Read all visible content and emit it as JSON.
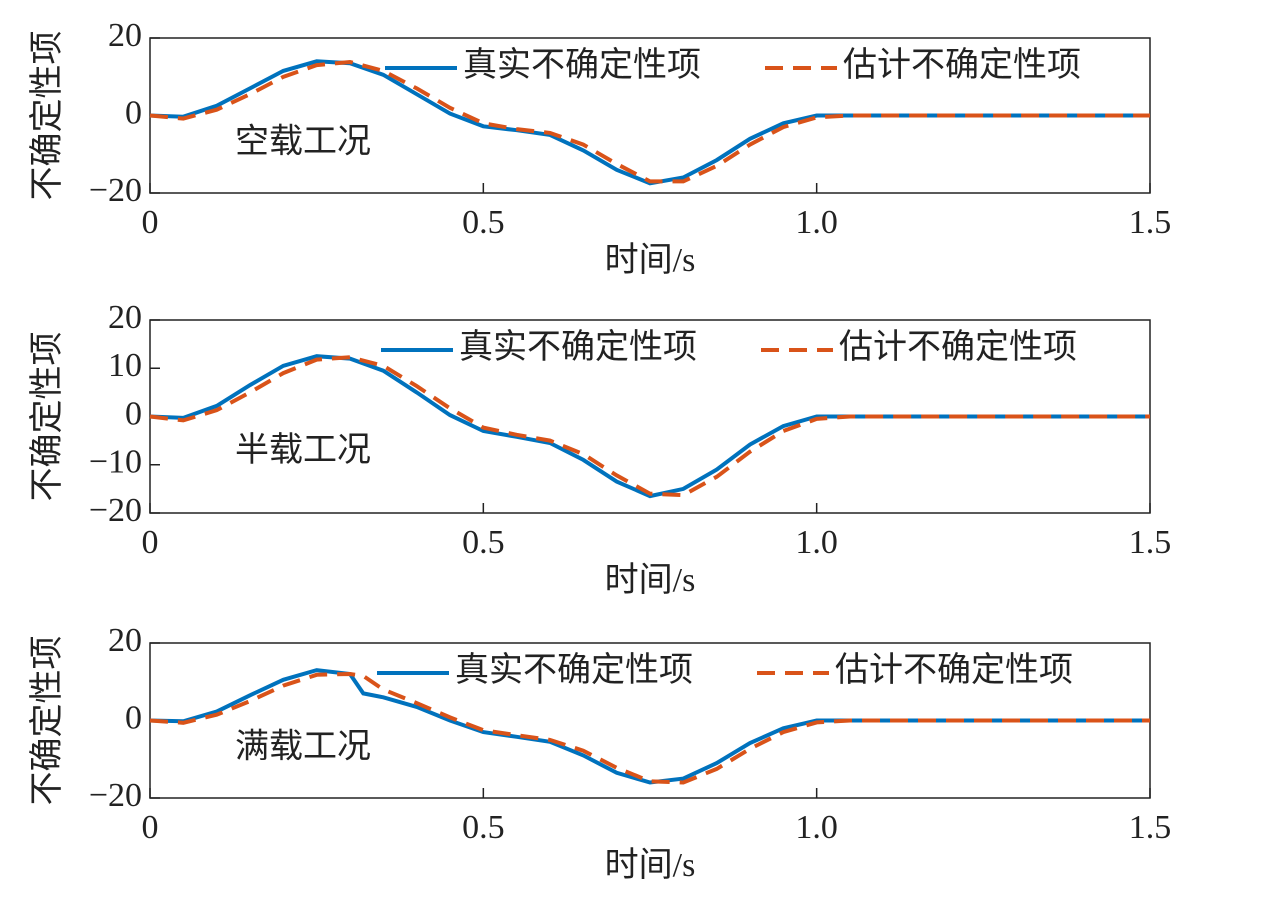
{
  "chart_data": [
    {
      "type": "line",
      "annotation": "空载工况",
      "xlabel": "时间/s",
      "ylabel": "不确定性项",
      "x": [
        0,
        0.05,
        0.1,
        0.15,
        0.2,
        0.25,
        0.3,
        0.35,
        0.4,
        0.45,
        0.5,
        0.55,
        0.6,
        0.65,
        0.7,
        0.75,
        0.8,
        0.85,
        0.9,
        0.95,
        1.0,
        1.05,
        1.1,
        1.15,
        1.2,
        1.25,
        1.3,
        1.35,
        1.4,
        1.45,
        1.5
      ],
      "series": [
        {
          "name": "真实不确定性项",
          "color": "#0072bd",
          "values": [
            0,
            -0.3,
            2.5,
            7,
            11.5,
            14,
            13.5,
            10.5,
            5.5,
            0.5,
            -2.8,
            -3.8,
            -5,
            -9,
            -14,
            -17.5,
            -16,
            -11.5,
            -6,
            -2,
            0,
            0,
            0,
            0,
            0,
            0,
            0,
            0,
            0,
            0,
            0
          ]
        },
        {
          "name": "估计不确定性项",
          "color": "#d95319",
          "values": [
            0,
            -0.8,
            1.5,
            5.5,
            10,
            13,
            13.8,
            11.5,
            7,
            2,
            -2,
            -3.5,
            -4.5,
            -7.5,
            -12.5,
            -17,
            -17,
            -13,
            -7.5,
            -3,
            -0.5,
            0,
            0,
            0,
            0,
            0,
            0,
            0,
            0,
            0,
            0
          ]
        }
      ],
      "xlim": [
        0,
        1.5
      ],
      "xticks": [
        0,
        0.5,
        {
          "value": 1.0,
          "label": "1.0"
        },
        1.5
      ],
      "ylim": [
        -20,
        20
      ],
      "yticks": [
        {
          "value": -20,
          "label": "−20"
        },
        0,
        20
      ]
    },
    {
      "type": "line",
      "annotation": "半载工况",
      "xlabel": "时间/s",
      "ylabel": "不确定性项",
      "x": [
        0,
        0.05,
        0.1,
        0.15,
        0.2,
        0.25,
        0.3,
        0.35,
        0.4,
        0.45,
        0.5,
        0.55,
        0.6,
        0.65,
        0.7,
        0.75,
        0.8,
        0.85,
        0.9,
        0.95,
        1.0,
        1.05,
        1.1,
        1.15,
        1.2,
        1.25,
        1.3,
        1.35,
        1.4,
        1.45,
        1.5
      ],
      "series": [
        {
          "name": "真实不确定性项",
          "color": "#0072bd",
          "values": [
            0,
            -0.3,
            2.2,
            6.5,
            10.5,
            12.5,
            12,
            9.5,
            5,
            0.3,
            -3,
            -4.2,
            -5.5,
            -9,
            -13.5,
            -16.5,
            -15,
            -11,
            -5.8,
            -2,
            0,
            0,
            0,
            0,
            0,
            0,
            0,
            0,
            0,
            0,
            0
          ]
        },
        {
          "name": "估计不确定性项",
          "color": "#d95319",
          "values": [
            0,
            -0.8,
            1.3,
            5,
            9,
            11.8,
            12.3,
            10.5,
            6.3,
            1.7,
            -2.3,
            -3.8,
            -5,
            -7.8,
            -12.2,
            -16,
            -16.3,
            -12.5,
            -7.3,
            -3,
            -0.5,
            0,
            0,
            0,
            0,
            0,
            0,
            0,
            0,
            0,
            0
          ]
        }
      ],
      "xlim": [
        0,
        1.5
      ],
      "xticks": [
        0,
        0.5,
        {
          "value": 1.0,
          "label": "1.0"
        },
        1.5
      ],
      "ylim": [
        -20,
        20
      ],
      "yticks": [
        {
          "value": -20,
          "label": "−20"
        },
        {
          "value": -10,
          "label": "−10"
        },
        0,
        10,
        20
      ]
    },
    {
      "type": "line",
      "annotation": "满载工况",
      "xlabel": "时间/s",
      "ylabel": "不确定性项",
      "x": [
        0,
        0.05,
        0.1,
        0.15,
        0.2,
        0.25,
        0.3,
        0.32,
        0.35,
        0.4,
        0.45,
        0.5,
        0.55,
        0.6,
        0.65,
        0.7,
        0.75,
        0.8,
        0.85,
        0.9,
        0.95,
        1.0,
        1.05,
        1.1,
        1.15,
        1.2,
        1.25,
        1.3,
        1.35,
        1.4,
        1.45,
        1.5
      ],
      "series": [
        {
          "name": "真实不确定性项",
          "color": "#0072bd",
          "values": [
            0,
            -0.2,
            2.3,
            6.5,
            10.5,
            13,
            12,
            7,
            6,
            3.5,
            0,
            -3,
            -4.2,
            -5.5,
            -9,
            -13.5,
            -16,
            -15,
            -11,
            -5.8,
            -2,
            0,
            0,
            0,
            0,
            0,
            0,
            0,
            0,
            0,
            0,
            0
          ]
        },
        {
          "name": "估计不确定性项",
          "color": "#d95319",
          "values": [
            0,
            -0.6,
            1.5,
            5,
            9,
            11.8,
            12,
            11.5,
            8,
            4.5,
            0.8,
            -2.5,
            -3.8,
            -5,
            -7.8,
            -12.2,
            -15.7,
            -16,
            -12.5,
            -7.3,
            -3,
            -0.5,
            0,
            0,
            0,
            0,
            0,
            0,
            0,
            0,
            0,
            0
          ]
        }
      ],
      "xlim": [
        0,
        1.5
      ],
      "xticks": [
        0,
        0.5,
        {
          "value": 1.0,
          "label": "1.0"
        },
        1.5
      ],
      "ylim": [
        -20,
        20
      ],
      "yticks": [
        {
          "value": -20,
          "label": "−20"
        },
        0,
        20
      ]
    }
  ]
}
